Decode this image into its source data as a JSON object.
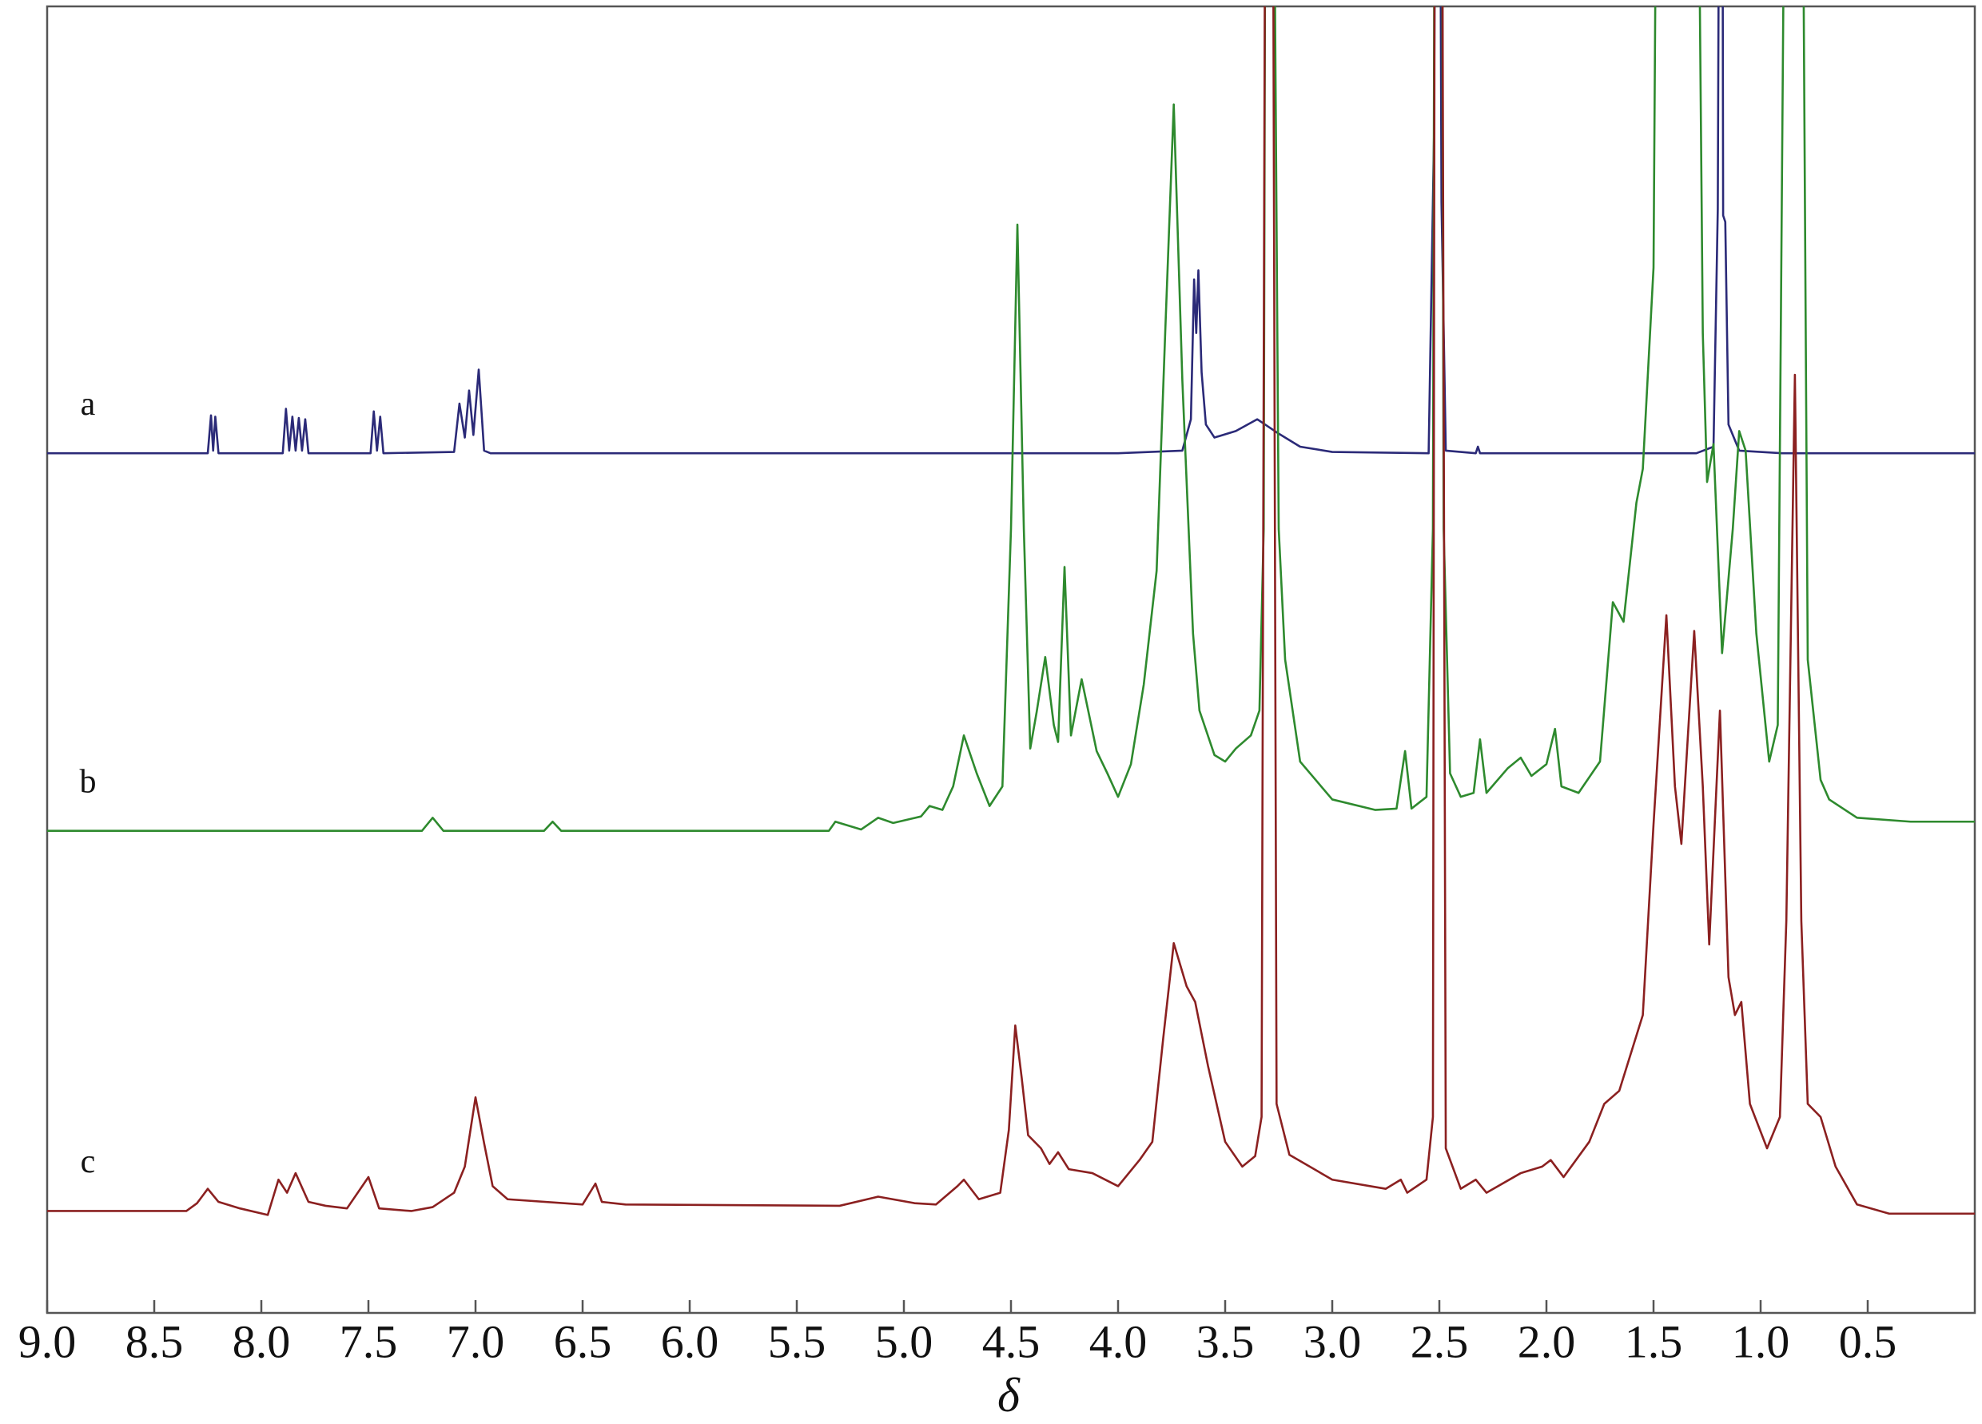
{
  "chart_data": {
    "type": "line",
    "xlabel": "δ",
    "xlim": [
      9.0,
      0.0
    ],
    "ylim": [
      0,
      100
    ],
    "xticks": [
      {
        "value": 9,
        "label": "9.0"
      },
      8.5,
      {
        "value": 8,
        "label": "8.0"
      },
      7.5,
      {
        "value": 7,
        "label": "7.0"
      },
      6.5,
      {
        "value": 6,
        "label": "6.0"
      },
      5.5,
      {
        "value": 5,
        "label": "5.0"
      },
      4.5,
      {
        "value": 4,
        "label": "4.0"
      },
      3.5,
      {
        "value": 3,
        "label": "3.0"
      },
      2.5,
      {
        "value": 2,
        "label": "2.0"
      },
      1.5,
      {
        "value": 1,
        "label": "1.0"
      },
      0.5
    ],
    "series": [
      {
        "name": "a",
        "color": "#2b2a78",
        "x": [
          9.0,
          8.25,
          8.235,
          8.225,
          8.215,
          8.2,
          7.9,
          7.885,
          7.87,
          7.855,
          7.84,
          7.825,
          7.81,
          7.795,
          7.78,
          7.49,
          7.475,
          7.46,
          7.445,
          7.43,
          7.1,
          7.075,
          7.05,
          7.03,
          7.01,
          6.985,
          6.96,
          6.93,
          4.0,
          3.7,
          3.66,
          3.645,
          3.635,
          3.625,
          3.61,
          3.59,
          3.55,
          3.45,
          3.35,
          3.25,
          3.15,
          3.0,
          2.55,
          2.525,
          2.515,
          2.5,
          2.49,
          2.47,
          2.33,
          2.32,
          2.31,
          1.3,
          1.22,
          1.2,
          1.19,
          1.18,
          1.175,
          1.165,
          1.15,
          1.1,
          0.9,
          0.0
        ],
        "values": [
          65.8,
          65.8,
          68.7,
          66.0,
          68.6,
          65.8,
          65.8,
          69.2,
          66.0,
          68.6,
          66.0,
          68.5,
          66.0,
          68.4,
          65.8,
          65.8,
          69.0,
          66.0,
          68.6,
          65.8,
          65.9,
          69.6,
          67.0,
          70.6,
          67.2,
          72.2,
          66.0,
          65.8,
          65.8,
          66.0,
          68.4,
          79.1,
          75.0,
          79.8,
          72.0,
          68.0,
          67.0,
          67.5,
          68.4,
          67.3,
          66.3,
          65.9,
          65.8,
          90,
          130,
          130,
          85,
          66.0,
          65.8,
          66.3,
          65.8,
          65.8,
          66.3,
          84.5,
          130,
          130,
          84.0,
          83.5,
          68.0,
          66.0,
          65.8,
          65.8
        ]
      },
      {
        "name": "b",
        "color": "#2e8a2e",
        "x": [
          9.0,
          7.25,
          7.2,
          7.15,
          6.68,
          6.64,
          6.6,
          5.35,
          5.32,
          5.2,
          5.12,
          5.05,
          4.92,
          4.88,
          4.82,
          4.77,
          4.72,
          4.66,
          4.6,
          4.54,
          4.5,
          4.47,
          4.44,
          4.41,
          4.38,
          4.34,
          4.3,
          4.28,
          4.25,
          4.22,
          4.17,
          4.1,
          4.05,
          4.0,
          3.94,
          3.88,
          3.82,
          3.78,
          3.74,
          3.7,
          3.65,
          3.62,
          3.55,
          3.5,
          3.45,
          3.38,
          3.34,
          3.32,
          3.31,
          3.28,
          3.25,
          3.22,
          3.15,
          3.0,
          2.8,
          2.7,
          2.66,
          2.63,
          2.56,
          2.53,
          2.52,
          2.49,
          2.48,
          2.45,
          2.4,
          2.34,
          2.31,
          2.28,
          2.18,
          2.12,
          2.07,
          2.0,
          1.96,
          1.93,
          1.85,
          1.75,
          1.69,
          1.64,
          1.58,
          1.55,
          1.5,
          1.48,
          1.3,
          1.27,
          1.25,
          1.22,
          1.18,
          1.13,
          1.1,
          1.07,
          1.02,
          0.96,
          0.92,
          0.88,
          0.81,
          0.78,
          0.72,
          0.68,
          0.55,
          0.3,
          0.05,
          0.0
        ],
        "values": [
          36.9,
          36.9,
          37.9,
          36.9,
          36.9,
          37.6,
          36.9,
          36.9,
          37.6,
          37.0,
          37.9,
          37.5,
          38.0,
          38.8,
          38.5,
          40.3,
          44.2,
          41.3,
          38.8,
          40.3,
          60.0,
          83.3,
          60.0,
          43.2,
          46.0,
          50.2,
          45.0,
          43.7,
          57.1,
          44.2,
          48.5,
          43.0,
          41.3,
          39.5,
          42.0,
          48.1,
          56.8,
          75.0,
          92.5,
          71.4,
          52.0,
          46.1,
          42.7,
          42.2,
          43.2,
          44.2,
          46.1,
          60.0,
          130,
          130,
          60.0,
          50.0,
          42.2,
          39.3,
          38.5,
          38.6,
          43.0,
          38.6,
          39.5,
          60,
          130,
          130,
          60,
          41.3,
          39.5,
          39.8,
          43.9,
          39.8,
          41.7,
          42.5,
          41.1,
          42.0,
          44.7,
          40.3,
          39.8,
          42.2,
          54.4,
          52.9,
          62.0,
          64.6,
          80.0,
          130,
          130,
          75.0,
          63.6,
          66.5,
          50.5,
          60.0,
          67.5,
          66.0,
          52.0,
          42.2,
          45.0,
          130,
          130,
          50.0,
          40.8,
          39.3,
          37.9,
          37.6,
          37.6,
          37.6
        ]
      },
      {
        "name": "c",
        "color": "#8b2020",
        "x": [
          9.0,
          8.35,
          8.3,
          8.25,
          8.2,
          8.1,
          7.97,
          7.92,
          7.88,
          7.84,
          7.78,
          7.7,
          7.6,
          7.5,
          7.45,
          7.3,
          7.2,
          7.1,
          7.05,
          7.0,
          6.96,
          6.92,
          6.85,
          6.5,
          6.44,
          6.41,
          6.3,
          5.3,
          5.12,
          4.95,
          4.85,
          4.75,
          4.72,
          4.65,
          4.55,
          4.51,
          4.48,
          4.45,
          4.42,
          4.36,
          4.32,
          4.28,
          4.23,
          4.12,
          4.0,
          3.9,
          3.84,
          3.79,
          3.74,
          3.68,
          3.64,
          3.58,
          3.5,
          3.42,
          3.36,
          3.33,
          3.31,
          3.28,
          3.26,
          3.2,
          3.0,
          2.75,
          2.68,
          2.65,
          2.56,
          2.53,
          2.52,
          2.49,
          2.47,
          2.4,
          2.33,
          2.28,
          2.12,
          2.02,
          1.98,
          1.92,
          1.8,
          1.73,
          1.66,
          1.55,
          1.5,
          1.44,
          1.4,
          1.37,
          1.31,
          1.27,
          1.24,
          1.19,
          1.15,
          1.12,
          1.09,
          1.05,
          0.97,
          0.91,
          0.88,
          0.84,
          0.81,
          0.78,
          0.72,
          0.65,
          0.55,
          0.4,
          0.0
        ],
        "values": [
          7.8,
          7.8,
          8.4,
          9.5,
          8.5,
          8.0,
          7.5,
          10.2,
          9.2,
          10.7,
          8.5,
          8.2,
          8.0,
          10.4,
          8.0,
          7.8,
          8.1,
          9.2,
          11.2,
          16.5,
          13.0,
          9.7,
          8.7,
          8.3,
          9.9,
          8.5,
          8.3,
          8.2,
          8.9,
          8.4,
          8.3,
          9.7,
          10.2,
          8.7,
          9.2,
          14.0,
          22.0,
          18.0,
          13.6,
          12.6,
          11.4,
          12.3,
          11.0,
          10.7,
          9.7,
          11.7,
          13.1,
          20.9,
          28.3,
          25.0,
          23.8,
          18.9,
          13.1,
          11.2,
          12.0,
          15.0,
          130,
          130,
          16.0,
          12.1,
          10.2,
          9.5,
          10.2,
          9.2,
          10.2,
          15.0,
          130,
          130,
          12.6,
          9.5,
          10.2,
          9.2,
          10.7,
          11.2,
          11.7,
          10.4,
          13.1,
          16.0,
          17.0,
          22.8,
          37.4,
          53.4,
          40.3,
          35.9,
          52.2,
          40.3,
          28.2,
          46.1,
          25.7,
          22.8,
          23.8,
          16.0,
          12.6,
          15.0,
          30.0,
          71.8,
          30.0,
          16.0,
          15.0,
          11.2,
          8.3,
          7.6,
          7.6
        ]
      }
    ]
  }
}
